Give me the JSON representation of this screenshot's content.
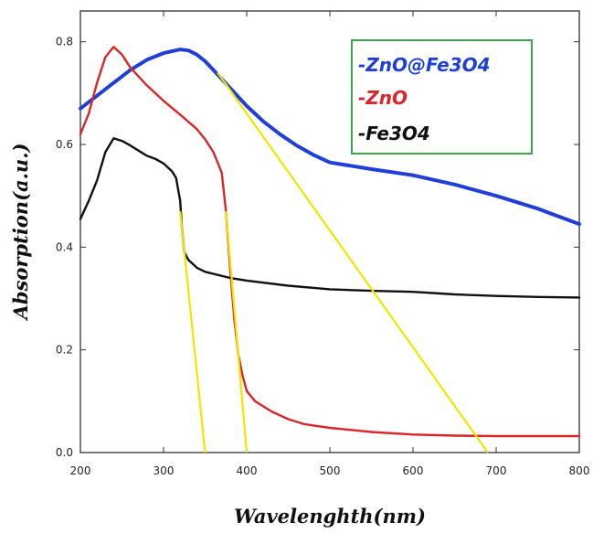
{
  "chart_data": {
    "type": "line",
    "xlabel": "Wavelenghth(nm)",
    "ylabel": "Absorption(a.u.)",
    "xlim": [
      200,
      800
    ],
    "ylim": [
      0.0,
      0.86
    ],
    "xticks": [
      200,
      300,
      400,
      500,
      600,
      700,
      800
    ],
    "yticks": [
      0.0,
      0.2,
      0.4,
      0.6,
      0.8
    ],
    "ytick_labels": [
      "0.0",
      "0.2",
      "0.4",
      "0.6",
      "0.8"
    ],
    "legend_position": "top-right",
    "series": [
      {
        "name": "-ZnO@Fe3O4",
        "color": "#1f3fd6",
        "x": [
          200,
          220,
          240,
          260,
          280,
          300,
          320,
          330,
          340,
          350,
          360,
          380,
          400,
          420,
          440,
          460,
          480,
          500,
          550,
          600,
          650,
          700,
          750,
          800
        ],
        "y": [
          0.67,
          0.695,
          0.72,
          0.745,
          0.765,
          0.778,
          0.785,
          0.783,
          0.775,
          0.762,
          0.745,
          0.71,
          0.675,
          0.645,
          0.62,
          0.598,
          0.58,
          0.565,
          0.552,
          0.54,
          0.522,
          0.5,
          0.475,
          0.445
        ]
      },
      {
        "name": "-ZnO",
        "color": "#d9262b",
        "x": [
          200,
          210,
          220,
          230,
          240,
          250,
          260,
          280,
          300,
          320,
          340,
          350,
          360,
          370,
          375,
          380,
          385,
          390,
          395,
          400,
          410,
          430,
          450,
          470,
          500,
          550,
          600,
          650,
          700,
          800
        ],
        "y": [
          0.62,
          0.66,
          0.72,
          0.77,
          0.79,
          0.775,
          0.75,
          0.715,
          0.685,
          0.658,
          0.63,
          0.61,
          0.585,
          0.545,
          0.47,
          0.36,
          0.26,
          0.19,
          0.15,
          0.12,
          0.1,
          0.08,
          0.065,
          0.055,
          0.048,
          0.04,
          0.035,
          0.033,
          0.032,
          0.032
        ]
      },
      {
        "name": "-Fe3O4",
        "color": "#111111",
        "x": [
          200,
          210,
          220,
          230,
          240,
          250,
          260,
          270,
          280,
          290,
          300,
          310,
          315,
          320,
          322,
          325,
          330,
          340,
          350,
          380,
          400,
          450,
          500,
          550,
          600,
          650,
          700,
          750,
          800
        ],
        "y": [
          0.455,
          0.49,
          0.53,
          0.585,
          0.612,
          0.607,
          0.598,
          0.588,
          0.578,
          0.572,
          0.563,
          0.548,
          0.535,
          0.49,
          0.44,
          0.39,
          0.375,
          0.36,
          0.352,
          0.34,
          0.335,
          0.325,
          0.318,
          0.315,
          0.313,
          0.308,
          0.305,
          0.303,
          0.302
        ]
      }
    ],
    "annotations": [
      {
        "type": "tangent",
        "color": "#f2e600",
        "x1": 320,
        "y1": 0.47,
        "x2": 350,
        "y2": 0.0
      },
      {
        "type": "tangent",
        "color": "#f2e600",
        "x1": 375,
        "y1": 0.47,
        "x2": 400,
        "y2": 0.0
      },
      {
        "type": "tangent",
        "color": "#f2e600",
        "x1": 365,
        "y1": 0.74,
        "x2": 690,
        "y2": 0.0
      }
    ]
  }
}
